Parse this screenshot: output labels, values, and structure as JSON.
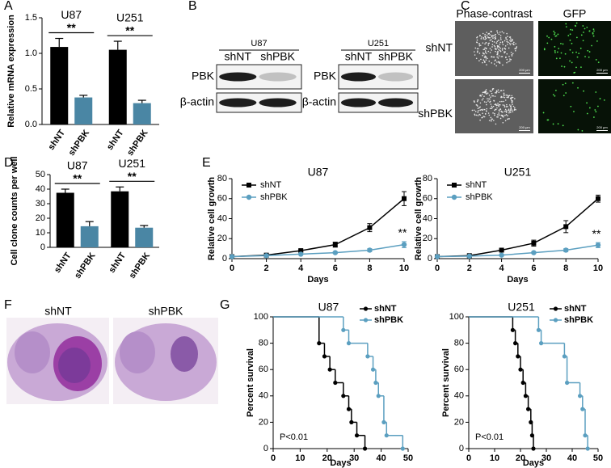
{
  "panel_letters": [
    "A",
    "B",
    "C",
    "D",
    "E",
    "F",
    "G"
  ],
  "chart_data": [
    {
      "type": "bar",
      "ylabel": "Relative mRNA expression",
      "categories": [
        "shNT",
        "shPBK",
        "shNT",
        "shPBK"
      ],
      "values": [
        1.09,
        0.38,
        1.05,
        0.3
      ],
      "errors": [
        0.12,
        0.03,
        0.12,
        0.04
      ],
      "colors": [
        "#000000",
        "#4a86a4",
        "#000000",
        "#4a86a4"
      ],
      "groups": [
        {
          "label": "U87",
          "annotation": "**"
        },
        {
          "label": "U251",
          "annotation": "**"
        }
      ],
      "ylim": [
        0,
        1.5
      ],
      "yticks": [
        {
          "value": 0,
          "label": "0.0"
        },
        0.5,
        {
          "value": 1,
          "label": "1.0"
        },
        1.5
      ]
    },
    {
      "type": "bar",
      "ylabel": "Cell clone counts per well",
      "categories": [
        "shNT",
        "shPBK",
        "shNT",
        "shPBK"
      ],
      "values": [
        37.5,
        14.5,
        38.5,
        13.5
      ],
      "errors": [
        2.5,
        3.2,
        3,
        1.5
      ],
      "colors": [
        "#000000",
        "#4a86a4",
        "#000000",
        "#4a86a4"
      ],
      "groups": [
        {
          "label": "U87",
          "annotation": "**"
        },
        {
          "label": "U251",
          "annotation": "**"
        }
      ],
      "ylim": [
        0,
        50
      ],
      "yticks": [
        0,
        10,
        20,
        30,
        40,
        50
      ]
    },
    {
      "type": "line",
      "title": "U87",
      "xlabel": "Days",
      "ylabel": "Relative cell growth",
      "x": [
        0,
        2,
        4,
        6,
        8,
        10
      ],
      "series": [
        {
          "name": "shNT",
          "color": "#000000",
          "marker": "square",
          "values": [
            2,
            3.5,
            8,
            14,
            31,
            60
          ],
          "errors": [
            0.5,
            0.5,
            1,
            2.5,
            4,
            7
          ]
        },
        {
          "name": "shPBK",
          "color": "#5b9fc0",
          "marker": "circle",
          "values": [
            2,
            3,
            4.5,
            6,
            8.5,
            14
          ],
          "errors": [
            0.3,
            0.4,
            0.5,
            0.8,
            1.5,
            3
          ]
        }
      ],
      "annotation": "**",
      "legend": "upper left",
      "xlim": [
        0,
        10
      ],
      "xticks": [
        0,
        2,
        4,
        6,
        8,
        10
      ],
      "ylim": [
        0,
        80
      ],
      "yticks": [
        0,
        20,
        40,
        60,
        80
      ]
    },
    {
      "type": "line",
      "title": "U251",
      "xlabel": "Days",
      "ylabel": "Relative cell growth",
      "x": [
        0,
        2,
        4,
        6,
        8,
        10
      ],
      "series": [
        {
          "name": "shNT",
          "color": "#000000",
          "marker": "square",
          "values": [
            2,
            3,
            8.5,
            15.5,
            32,
            60
          ],
          "errors": [
            0.5,
            0.5,
            1,
            3,
            6,
            3.5
          ]
        },
        {
          "name": "shPBK",
          "color": "#5b9fc0",
          "marker": "circle",
          "values": [
            2,
            2.5,
            3.5,
            6,
            8.5,
            13.5
          ],
          "errors": [
            0.3,
            0.4,
            0.5,
            0.8,
            1.5,
            2.5
          ]
        }
      ],
      "annotation": "**",
      "legend": "upper left",
      "xlim": [
        0,
        10
      ],
      "xticks": [
        0,
        2,
        4,
        6,
        8,
        10
      ],
      "ylim": [
        0,
        80
      ],
      "yticks": [
        0,
        20,
        40,
        60,
        80
      ]
    },
    {
      "type": "survival",
      "title": "U87",
      "xlabel": "Days",
      "ylabel": "Percent survival",
      "series": [
        {
          "name": "shNT",
          "color": "#000000",
          "x": [
            0,
            17,
            19,
            21,
            23,
            26,
            28,
            29,
            31,
            34
          ],
          "values": [
            100,
            80,
            70,
            60,
            50,
            40,
            30,
            20,
            10,
            0
          ]
        },
        {
          "name": "shPBK",
          "color": "#5b9fc0",
          "x": [
            0,
            26,
            28,
            35,
            37,
            38,
            39,
            41,
            42,
            48
          ],
          "values": [
            100,
            90,
            80,
            70,
            60,
            50,
            40,
            20,
            10,
            0
          ]
        }
      ],
      "annotation": "P<0.01",
      "legend": "upper right",
      "xlim": [
        0,
        50
      ],
      "xticks": [
        0,
        10,
        20,
        30,
        40,
        50
      ],
      "ylim": [
        0,
        100
      ],
      "yticks": [
        0,
        20,
        40,
        60,
        80,
        100
      ]
    },
    {
      "type": "survival",
      "title": "U251",
      "xlabel": "Days",
      "ylabel": "Percent survival",
      "series": [
        {
          "name": "shNT",
          "color": "#000000",
          "x": [
            0,
            17,
            18,
            19,
            20,
            21,
            22,
            23,
            24,
            24.5,
            25
          ],
          "values": [
            100,
            90,
            80,
            70,
            60,
            50,
            40,
            30,
            20,
            10,
            0
          ]
        },
        {
          "name": "shPBK",
          "color": "#5b9fc0",
          "x": [
            0,
            27,
            28,
            37,
            38,
            43,
            44,
            45,
            46
          ],
          "values": [
            100,
            90,
            80,
            70,
            50,
            40,
            30,
            10,
            0
          ]
        }
      ],
      "annotation": "P<0.01",
      "legend": "upper right",
      "xlim": [
        0,
        50
      ],
      "xticks": [
        0,
        10,
        20,
        30,
        40,
        50
      ],
      "ylim": [
        0,
        100
      ],
      "yticks": [
        0,
        20,
        40,
        60,
        80,
        100
      ]
    }
  ],
  "western_blot": {
    "blots": [
      {
        "cell_line": "U87",
        "lanes": [
          "shNT",
          "shPBK"
        ],
        "rows": [
          "PBK",
          "β-actin"
        ]
      },
      {
        "cell_line": "U251",
        "lanes": [
          "shNT",
          "shPBK"
        ],
        "rows": [
          "PBK",
          "β-actin"
        ]
      }
    ]
  },
  "microscopy": {
    "columns": [
      "Phase-contrast",
      "GFP"
    ],
    "rows": [
      "shNT",
      "shPBK"
    ],
    "scale_bar": "200 μm"
  },
  "histology": {
    "labels": [
      "shNT",
      "shPBK"
    ]
  }
}
